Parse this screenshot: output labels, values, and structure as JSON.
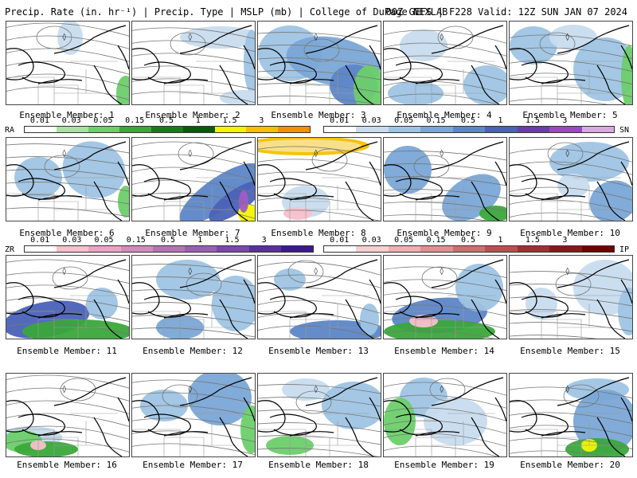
{
  "title": {
    "left": "Precip. Rate (in. hr⁻¹) | Precip. Type | MSLP (mb) | College of DuPage NEXLAB",
    "right": "00Z GEFS | F228 Valid: 12Z SUN JAN 07 2024"
  },
  "member_label_prefix": "Ensemble Member:",
  "members": [
    {
      "label": "Ensemble Member: 1"
    },
    {
      "label": "Ensemble Member: 2"
    },
    {
      "label": "Ensemble Member: 3"
    },
    {
      "label": "Ensemble Member: 4"
    },
    {
      "label": "Ensemble Member: 5"
    },
    {
      "label": "Ensemble Member: 6"
    },
    {
      "label": "Ensemble Member: 7"
    },
    {
      "label": "Ensemble Member: 8"
    },
    {
      "label": "Ensemble Member: 9"
    },
    {
      "label": "Ensemble Member: 10"
    },
    {
      "label": "Ensemble Member: 11"
    },
    {
      "label": "Ensemble Member: 12"
    },
    {
      "label": "Ensemble Member: 13"
    },
    {
      "label": "Ensemble Member: 14"
    },
    {
      "label": "Ensemble Member: 15"
    },
    {
      "label": "Ensemble Member: 16"
    },
    {
      "label": "Ensemble Member: 17"
    },
    {
      "label": "Ensemble Member: 18"
    },
    {
      "label": "Ensemble Member: 19"
    },
    {
      "label": "Ensemble Member: 20"
    }
  ],
  "legends": {
    "rain": {
      "code": "RA",
      "ticks": [
        "0.01",
        "0.03",
        "0.05",
        "0.15",
        "0.5",
        "1",
        "1.5",
        "3"
      ],
      "colors": [
        "#ffffff",
        "#a8e2a0",
        "#6ccf6a",
        "#3aa83a",
        "#1b7a1b",
        "#0b5a0b",
        "#f4f400",
        "#f4c000",
        "#f49000"
      ]
    },
    "snow": {
      "code": "SN",
      "ticks": [
        "0.01",
        "0.03",
        "0.05",
        "0.15",
        "0.5",
        "1",
        "1.5",
        "3"
      ],
      "colors": [
        "#ffffff",
        "#c8dcee",
        "#9ec4e4",
        "#7aa6d6",
        "#5c86c8",
        "#4a62b8",
        "#6a3cb0",
        "#9a48c4",
        "#d8a8e0"
      ]
    },
    "freezing_rain": {
      "code": "ZR",
      "ticks": [
        "0.01",
        "0.03",
        "0.05",
        "0.15",
        "0.5",
        "1",
        "1.5",
        "3"
      ],
      "colors": [
        "#ffffff",
        "#f8c0cc",
        "#e8a4c4",
        "#d08cbc",
        "#b474b4",
        "#9a60b0",
        "#7c48a8",
        "#5c309c",
        "#3c1890"
      ]
    },
    "ice_pellets": {
      "code": "IP",
      "ticks": [
        "0.01",
        "0.03",
        "0.05",
        "0.15",
        "0.5",
        "1",
        "1.5",
        "3"
      ],
      "colors": [
        "#ffffff",
        "#f8d0d0",
        "#eeb0b0",
        "#e09090",
        "#cc7070",
        "#b85050",
        "#a03030",
        "#881818",
        "#700000"
      ]
    }
  }
}
